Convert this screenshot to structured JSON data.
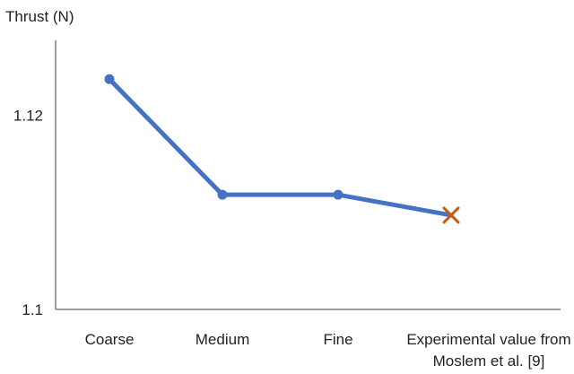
{
  "chart_data": {
    "type": "line",
    "title": "",
    "ylabel": "Thrust (N)",
    "xlabel": "",
    "ylim": [
      1.1,
      1.13
    ],
    "yticks": [
      1.1,
      1.12
    ],
    "ytick_labels": [
      "1.1",
      "1.12"
    ],
    "categories": [
      "Coarse",
      "Medium",
      "Fine",
      "Experimental value from Moslem et al. [9]"
    ],
    "category_label_lines": [
      [
        "Coarse"
      ],
      [
        "Medium"
      ],
      [
        "Fine"
      ],
      [
        "Experimental value from",
        "Moslem et al. [9]"
      ]
    ],
    "series": [
      {
        "values": [
          1.1237,
          1.1118,
          1.1118,
          1.1097
        ],
        "color": "#4472c4",
        "markers": [
          "circle",
          "circle",
          "circle",
          "cross"
        ],
        "marker_colors": [
          "#4472c4",
          "#4472c4",
          "#4472c4",
          "#c55a11"
        ]
      }
    ],
    "grid": false,
    "legend": "none"
  }
}
